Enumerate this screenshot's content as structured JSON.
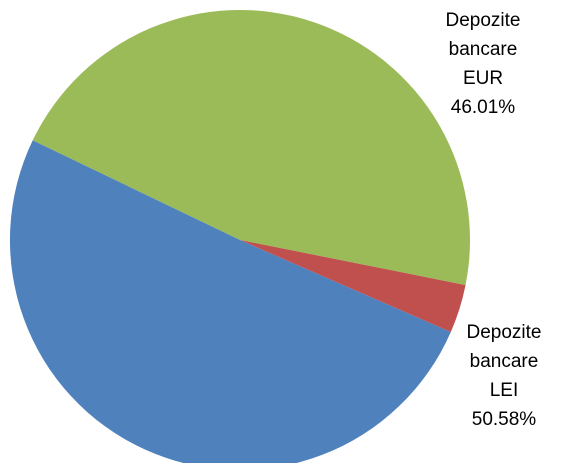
{
  "chart_data": {
    "type": "pie",
    "slices": [
      {
        "label_lines": [
          "Depozite",
          "bancare",
          "EUR"
        ],
        "value_label": "46.01%",
        "value": 46.01,
        "color": "#9BBB59"
      },
      {
        "label_lines": [
          "Depozite",
          "bancare",
          "LEI"
        ],
        "value_label": "50.58%",
        "value": 50.58,
        "color": "#4F81BD"
      },
      {
        "label_lines": [],
        "value_label": "",
        "value": 3.41,
        "color": "#C0504D"
      }
    ],
    "start_direction": "right, rotating counter-clockwise from the EUR slice"
  }
}
